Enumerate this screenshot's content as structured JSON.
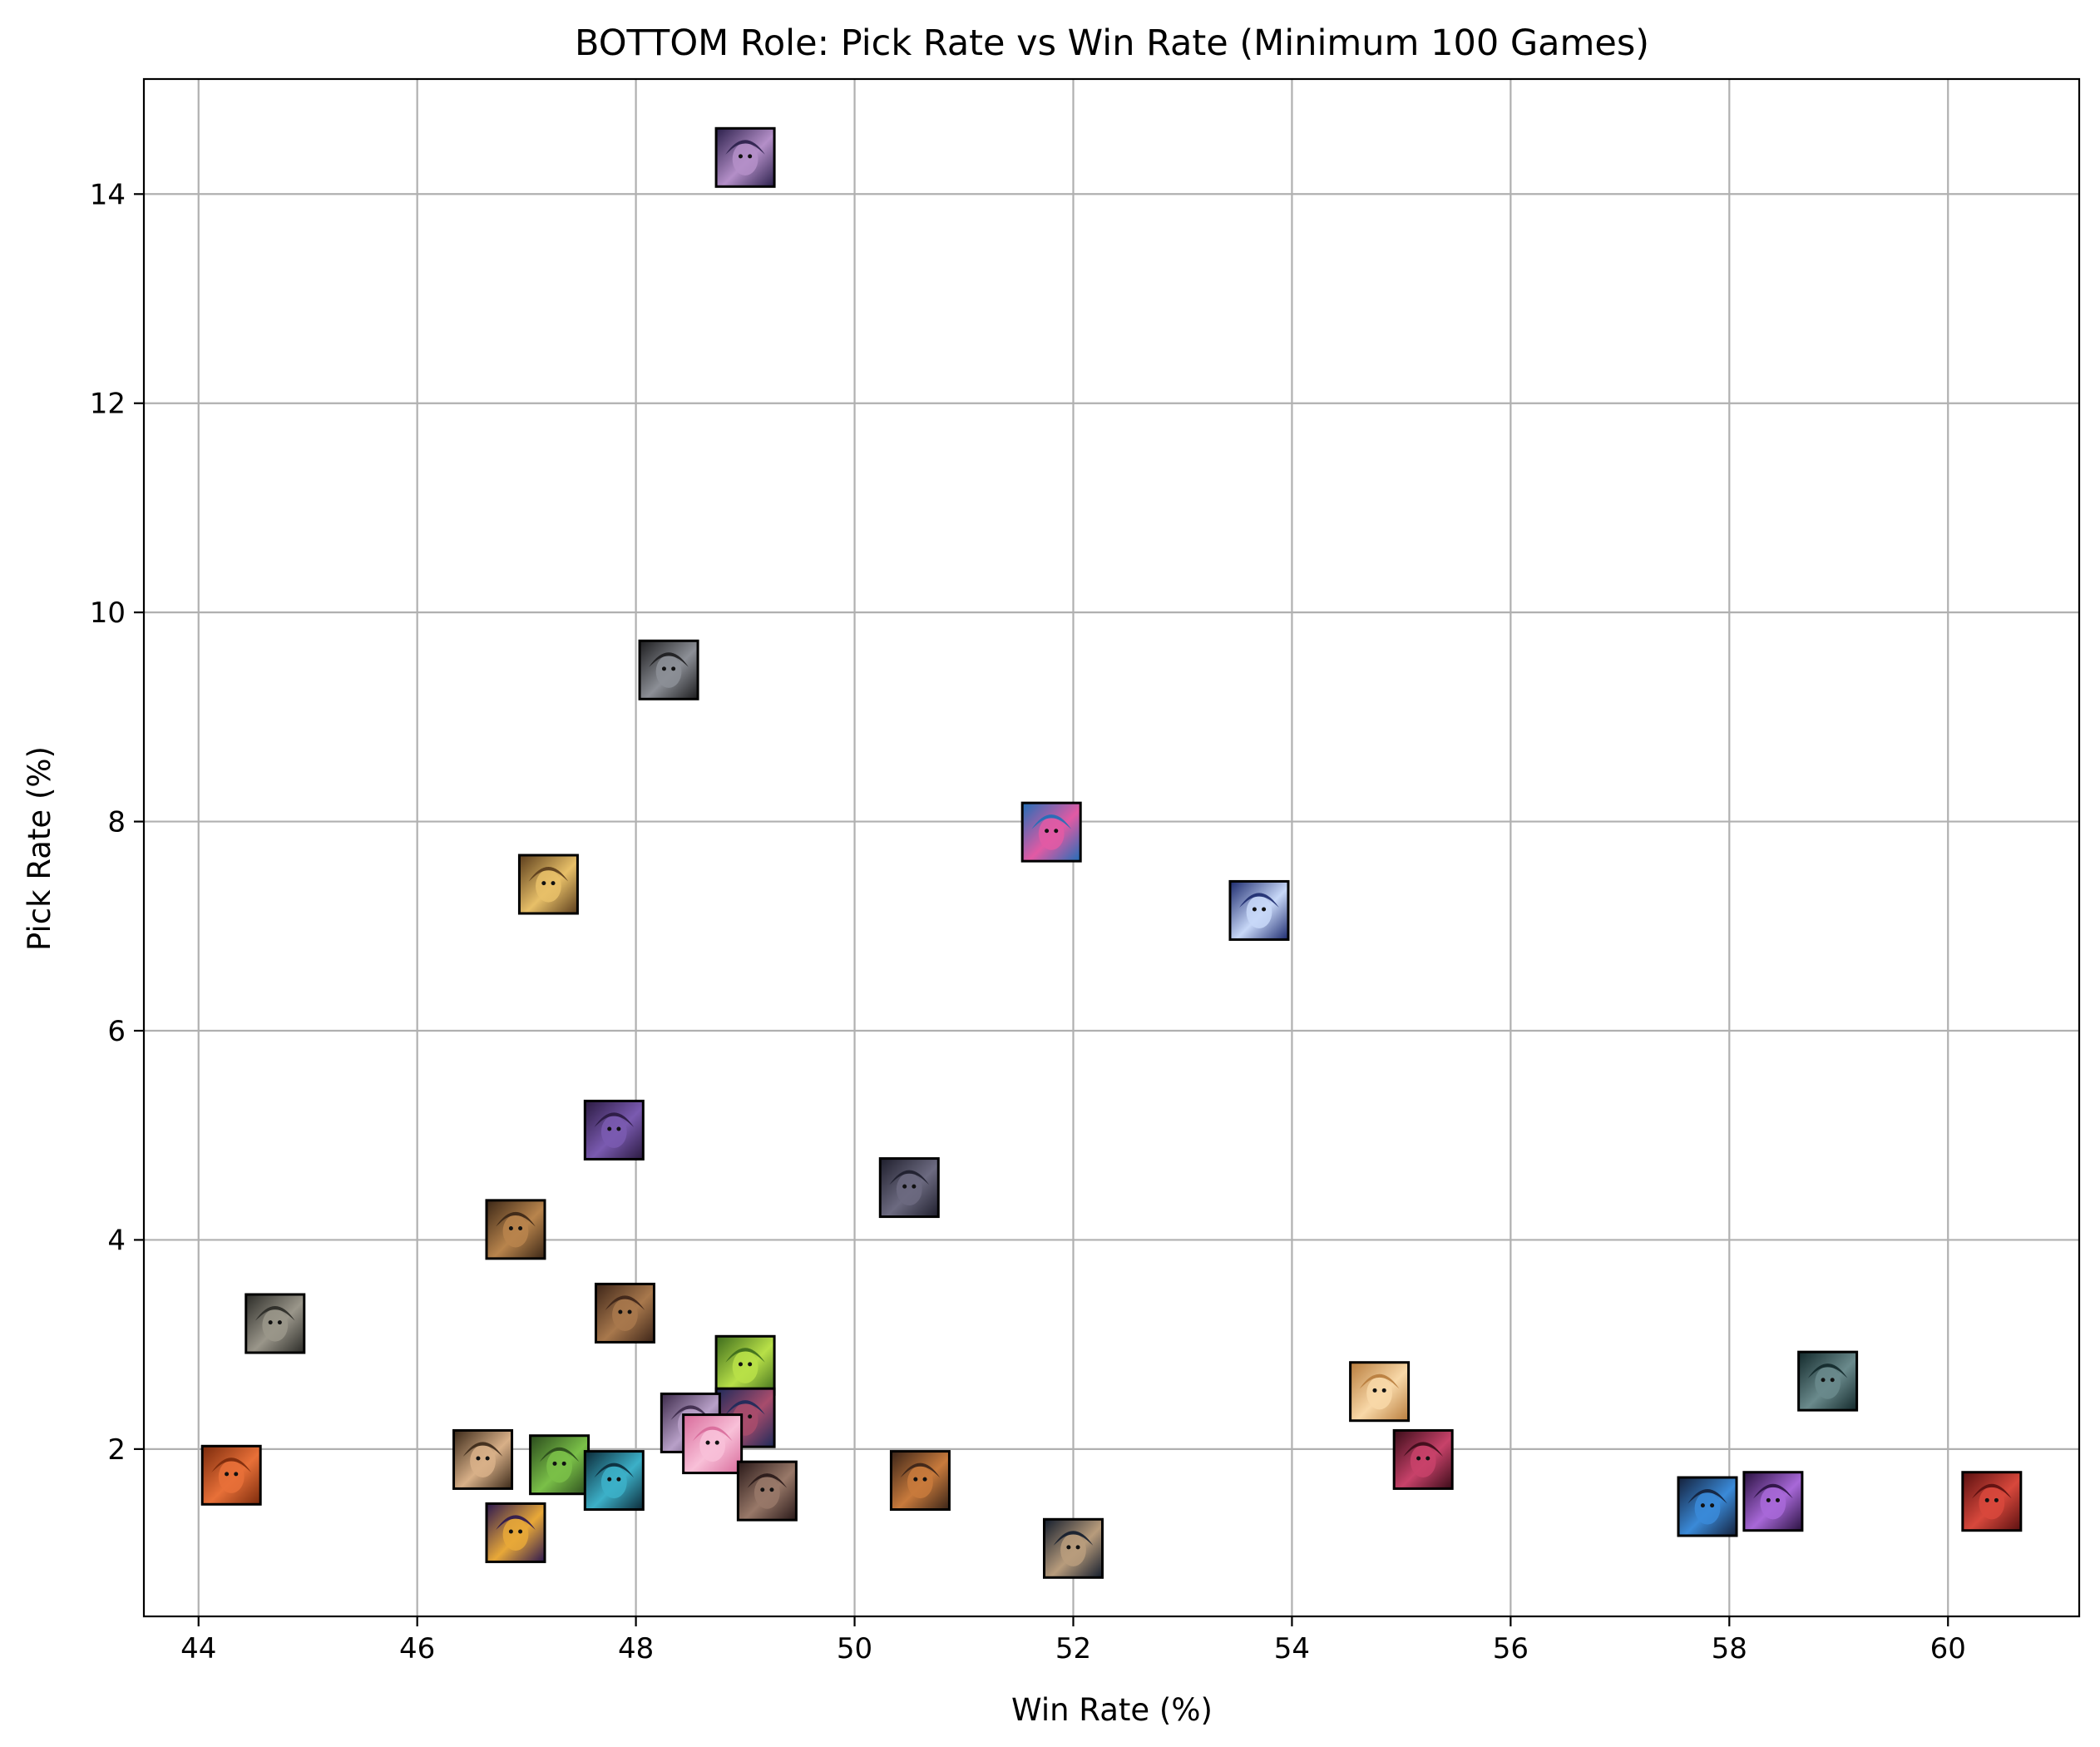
{
  "chart_data": {
    "type": "scatter",
    "title": "BOTTOM Role: Pick Rate vs Win Rate (Minimum 100 Games)",
    "xlabel": "Win Rate (%)",
    "ylabel": "Pick Rate (%)",
    "xlim": [
      43.5,
      61.2
    ],
    "ylim": [
      0.4,
      15.1
    ],
    "xticks": [
      44,
      46,
      48,
      50,
      52,
      54,
      56,
      58,
      60
    ],
    "yticks": [
      2,
      4,
      6,
      8,
      10,
      12,
      14
    ],
    "grid": true,
    "marker": "champion-portrait",
    "points": [
      {
        "x": 49.0,
        "y": 14.35,
        "colors": [
          "#2a1f4a",
          "#b48fc8"
        ]
      },
      {
        "x": 48.3,
        "y": 9.45,
        "colors": [
          "#1c1c1e",
          "#8c8f96"
        ]
      },
      {
        "x": 51.8,
        "y": 7.9,
        "colors": [
          "#1f6fb8",
          "#e25aa4"
        ]
      },
      {
        "x": 47.2,
        "y": 7.4,
        "colors": [
          "#5a3c1c",
          "#e8c068"
        ]
      },
      {
        "x": 53.7,
        "y": 7.15,
        "colors": [
          "#1c2a6e",
          "#c8d8f8"
        ]
      },
      {
        "x": 47.8,
        "y": 5.05,
        "colors": [
          "#2a1a40",
          "#7a5ab0"
        ]
      },
      {
        "x": 50.5,
        "y": 4.5,
        "colors": [
          "#1e1e2c",
          "#6c6a80"
        ]
      },
      {
        "x": 46.9,
        "y": 4.1,
        "colors": [
          "#3a2616",
          "#b8844c"
        ]
      },
      {
        "x": 44.7,
        "y": 3.2,
        "colors": [
          "#2a2a26",
          "#9a968a"
        ]
      },
      {
        "x": 47.9,
        "y": 3.3,
        "colors": [
          "#3c2418",
          "#a8784c"
        ]
      },
      {
        "x": 49.0,
        "y": 2.8,
        "colors": [
          "#3c6a1c",
          "#b8e048"
        ]
      },
      {
        "x": 58.9,
        "y": 2.65,
        "colors": [
          "#12282a",
          "#6a8a8c"
        ]
      },
      {
        "x": 54.8,
        "y": 2.55,
        "colors": [
          "#b87c3c",
          "#f8d8a8"
        ]
      },
      {
        "x": 49.0,
        "y": 2.3,
        "colors": [
          "#1c2a5a",
          "#a84c6c"
        ]
      },
      {
        "x": 48.5,
        "y": 2.25,
        "colors": [
          "#3c2a4a",
          "#b8a0c8"
        ]
      },
      {
        "x": 48.7,
        "y": 2.05,
        "colors": [
          "#d86a9a",
          "#f8c0d8"
        ]
      },
      {
        "x": 55.2,
        "y": 1.9,
        "colors": [
          "#3a0c18",
          "#c8426a"
        ]
      },
      {
        "x": 46.6,
        "y": 1.9,
        "colors": [
          "#3a2818",
          "#d8b088"
        ]
      },
      {
        "x": 47.3,
        "y": 1.85,
        "colors": [
          "#2a4a1c",
          "#7ac048"
        ]
      },
      {
        "x": 44.3,
        "y": 1.75,
        "colors": [
          "#7a2a0c",
          "#e87038"
        ]
      },
      {
        "x": 47.8,
        "y": 1.7,
        "colors": [
          "#0c2a38",
          "#3cb0c8"
        ]
      },
      {
        "x": 50.6,
        "y": 1.7,
        "colors": [
          "#3a2418",
          "#c87a3c"
        ]
      },
      {
        "x": 49.2,
        "y": 1.6,
        "colors": [
          "#281818",
          "#987868"
        ]
      },
      {
        "x": 60.4,
        "y": 1.5,
        "colors": [
          "#5a1010",
          "#d8483c"
        ]
      },
      {
        "x": 58.4,
        "y": 1.5,
        "colors": [
          "#2a1240",
          "#a868d8"
        ]
      },
      {
        "x": 57.8,
        "y": 1.45,
        "colors": [
          "#14203a",
          "#3a8ad8"
        ]
      },
      {
        "x": 46.9,
        "y": 1.2,
        "colors": [
          "#2a1650",
          "#e8a838"
        ]
      },
      {
        "x": 52.0,
        "y": 1.05,
        "colors": [
          "#121c2c",
          "#b89c7c"
        ]
      }
    ]
  }
}
